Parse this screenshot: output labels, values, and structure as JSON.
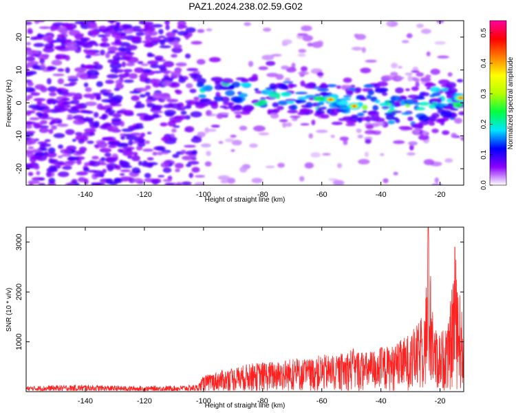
{
  "title": "PAZ1.2024.238.02.59.G02",
  "chart_data": [
    {
      "type": "heatmap",
      "xlabel": "Height of straight line (km)",
      "ylabel": "Frequency (Hz)",
      "xlim": [
        -160,
        -12
      ],
      "ylim": [
        -25,
        25
      ],
      "xticks": [
        -140,
        -120,
        -100,
        -80,
        -60,
        -40,
        -20
      ],
      "yticks": [
        -20,
        -10,
        0,
        10,
        20
      ],
      "colorbar": {
        "label": "Normalized spectral amplitude",
        "range": [
          0.0,
          0.54
        ],
        "ticks": [
          0.0,
          0.1,
          0.2,
          0.3,
          0.4,
          0.5
        ],
        "colors": [
          "#ffffff",
          "#8a00ff",
          "#0000ff",
          "#00e5ff",
          "#00ff40",
          "#b4ff00",
          "#ffff00",
          "#ff8000",
          "#ff0000",
          "#ff00a0"
        ]
      },
      "ridge": [
        {
          "x": -100,
          "y": 4
        },
        {
          "x": -80,
          "y": 2
        },
        {
          "x": -60,
          "y": 1
        },
        {
          "x": -50,
          "y": -1
        },
        {
          "x": -40,
          "y": 0
        },
        {
          "x": -30,
          "y": -2
        },
        {
          "x": -12,
          "y": 2
        }
      ],
      "peaks": [
        {
          "x": -57,
          "y": 1,
          "value": 0.45
        },
        {
          "x": -49,
          "y": -1,
          "value": 0.48
        },
        {
          "x": -13,
          "y": 1.5,
          "value": 0.5
        }
      ]
    },
    {
      "type": "line",
      "xlabel": "Height of straight line (km)",
      "ylabel": "SNR (10 * v/v)",
      "xlim": [
        -160,
        -12
      ],
      "ylim": [
        0,
        3300
      ],
      "xticks": [
        -140,
        -120,
        -100,
        -80,
        -60,
        -40,
        -20
      ],
      "yticks": [
        1000,
        2000,
        3000
      ],
      "color": "#ff2020",
      "series": [
        {
          "x": [
            -160,
            -150,
            -140,
            -130,
            -120,
            -110,
            -102,
            -100,
            -95,
            -90,
            -85,
            -80,
            -75,
            -70,
            -65,
            -60,
            -55,
            -50,
            -45,
            -40,
            -35,
            -30,
            -27,
            -25,
            -24,
            -22,
            -20,
            -17,
            -15,
            -12
          ],
          "y": [
            110,
            130,
            140,
            120,
            110,
            120,
            140,
            320,
            420,
            480,
            560,
            600,
            620,
            680,
            660,
            750,
            720,
            880,
            800,
            900,
            950,
            1200,
            1400,
            1800,
            3300,
            1300,
            1200,
            1400,
            2900,
            1300
          ]
        }
      ]
    }
  ]
}
